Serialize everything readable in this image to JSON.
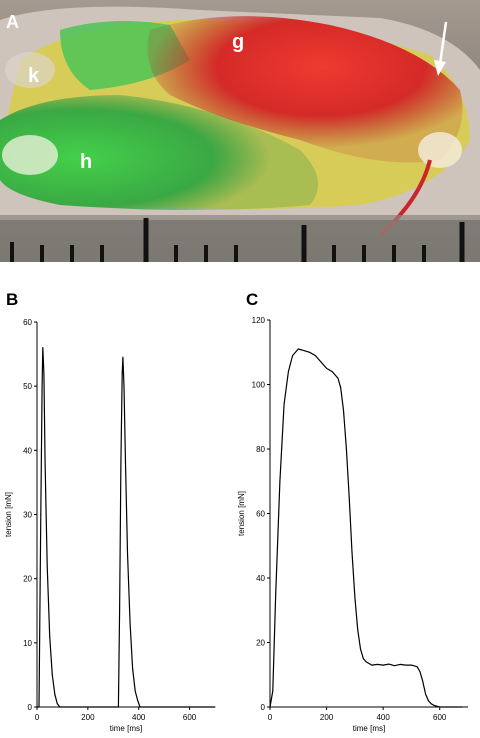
{
  "figure": {
    "panels": [
      {
        "letter": "A"
      },
      {
        "letter": "B"
      },
      {
        "letter": "C"
      }
    ]
  },
  "photo": {
    "panel_letter": "A",
    "labels": {
      "k": "k",
      "g": "g",
      "h": "h"
    },
    "colors": {
      "green": "#3fbf45",
      "red": "#e0282a",
      "yellow": "#dcd24a",
      "background": "#9a8f86"
    }
  },
  "chart_data": [
    {
      "type": "line",
      "panel": "B",
      "xlabel": "time [ms]",
      "ylabel": "tension [mN]",
      "xlim": [
        0,
        700
      ],
      "ylim": [
        0,
        60
      ],
      "xticks": [
        0,
        200,
        400,
        600
      ],
      "yticks": [
        0,
        10,
        20,
        30,
        40,
        50,
        60
      ],
      "grid": false,
      "series": [
        {
          "x": [
            0,
            8,
            15,
            20,
            23,
            27,
            32,
            40,
            50,
            60,
            70,
            80,
            90,
            100,
            320,
            325,
            330,
            335,
            338,
            342,
            348,
            356,
            366,
            376,
            386,
            396,
            405,
            420,
            700
          ],
          "y": [
            0,
            0,
            30,
            50,
            56,
            52,
            38,
            22,
            11,
            5,
            2,
            0.5,
            0,
            0,
            0,
            15,
            38,
            52,
            54.5,
            50,
            38,
            24,
            13,
            6,
            2.5,
            1,
            0,
            0,
            0
          ]
        }
      ]
    },
    {
      "type": "line",
      "panel": "C",
      "xlabel": "time [ms]",
      "ylabel": "tension [mN]",
      "xlim": [
        0,
        700
      ],
      "ylim": [
        0,
        120
      ],
      "xticks": [
        0,
        200,
        400,
        600
      ],
      "yticks": [
        0,
        20,
        40,
        60,
        80,
        100,
        120
      ],
      "grid": false,
      "series": [
        {
          "x": [
            0,
            10,
            20,
            35,
            50,
            65,
            80,
            100,
            120,
            140,
            160,
            180,
            200,
            220,
            240,
            250,
            260,
            270,
            280,
            290,
            300,
            310,
            320,
            330,
            340,
            350,
            360,
            380,
            400,
            420,
            440,
            460,
            480,
            500,
            520,
            530,
            540,
            550,
            560,
            570,
            580,
            600,
            620,
            640,
            680
          ],
          "y": [
            0,
            5,
            35,
            70,
            94,
            104,
            109,
            111,
            110.5,
            110,
            109,
            107,
            105,
            104,
            102,
            99,
            92,
            80,
            65,
            48,
            34,
            24,
            18,
            15,
            14,
            13.5,
            13,
            13.2,
            13,
            13.3,
            12.8,
            13.2,
            13,
            13,
            12.5,
            11,
            8,
            4,
            2,
            1,
            0.5,
            0,
            0,
            0,
            0
          ]
        }
      ]
    }
  ]
}
